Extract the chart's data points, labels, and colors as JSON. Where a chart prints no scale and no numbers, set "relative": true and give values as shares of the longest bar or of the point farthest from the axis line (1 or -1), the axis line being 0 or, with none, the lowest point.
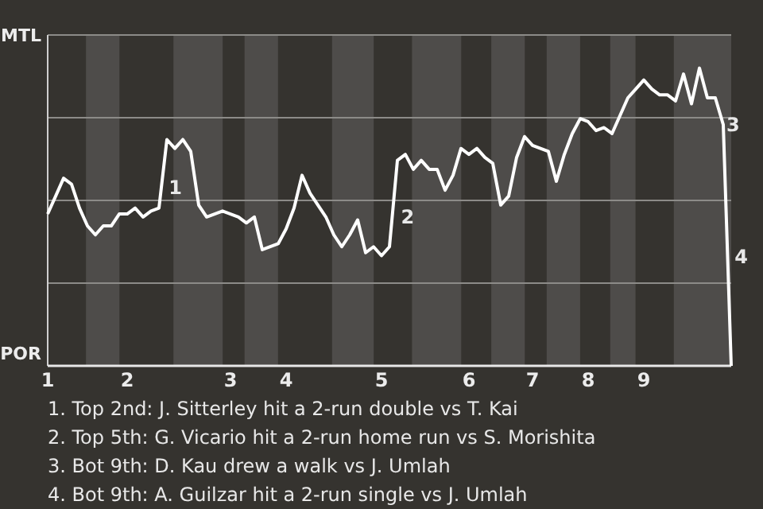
{
  "chart_data": {
    "type": "line",
    "relative": true,
    "categories": [
      "1",
      null,
      null,
      null,
      null,
      null,
      null,
      null,
      null,
      null,
      "2",
      null,
      null,
      null,
      null,
      null,
      null,
      null,
      null,
      null,
      null,
      null,
      null,
      "3",
      null,
      null,
      null,
      null,
      null,
      null,
      "4",
      null,
      null,
      null,
      null,
      null,
      null,
      null,
      null,
      null,
      null,
      null,
      "5",
      null,
      null,
      null,
      null,
      null,
      null,
      null,
      null,
      null,
      null,
      "6",
      null,
      null,
      null,
      null,
      null,
      null,
      null,
      "7",
      null,
      null,
      null,
      null,
      null,
      null,
      "8",
      null,
      null,
      null,
      null,
      null,
      null,
      "9",
      null,
      null,
      null,
      null,
      null,
      null,
      null,
      null,
      null,
      null,
      null
    ],
    "series": [
      {
        "color": "#ffffff",
        "values": [
          0.51,
          0.57,
          0.63,
          0.61,
          0.53,
          0.47,
          0.44,
          0.47,
          0.47,
          0.51,
          0.51,
          0.53,
          0.5,
          0.52,
          0.53,
          0.76,
          0.73,
          0.76,
          0.72,
          0.54,
          0.5,
          0.51,
          0.52,
          0.51,
          0.5,
          0.48,
          0.5,
          0.39,
          0.4,
          0.41,
          0.46,
          0.53,
          0.64,
          0.58,
          0.54,
          0.5,
          0.44,
          0.4,
          0.44,
          0.49,
          0.38,
          0.4,
          0.37,
          0.4,
          0.69,
          0.71,
          0.66,
          0.69,
          0.66,
          0.66,
          0.59,
          0.64,
          0.73,
          0.71,
          0.73,
          0.7,
          0.68,
          0.54,
          0.57,
          0.7,
          0.77,
          0.74,
          0.73,
          0.72,
          0.62,
          0.71,
          0.78,
          0.83,
          0.82,
          0.79,
          0.8,
          0.78,
          0.84,
          0.9,
          0.93,
          0.96,
          0.93,
          0.91,
          0.91,
          0.89,
          0.98,
          0.88,
          1,
          0.9,
          0.9,
          0.81,
          0
        ]
      }
    ],
    "annotations": [
      "MTL",
      "POR",
      "1",
      "2",
      "3",
      "4",
      "1. Top 2nd: J. Sitterley hit a 2-run double vs T. Kai",
      "2. Top 5th: G. Vicario hit a 2-run home run vs S. Morishita",
      "3. Bot 9th: D. Kau drew a walk vs J. Umlah",
      "4. Bot 9th: A. Guilzar hit a 2-run single vs J. Umlah"
    ]
  }
}
